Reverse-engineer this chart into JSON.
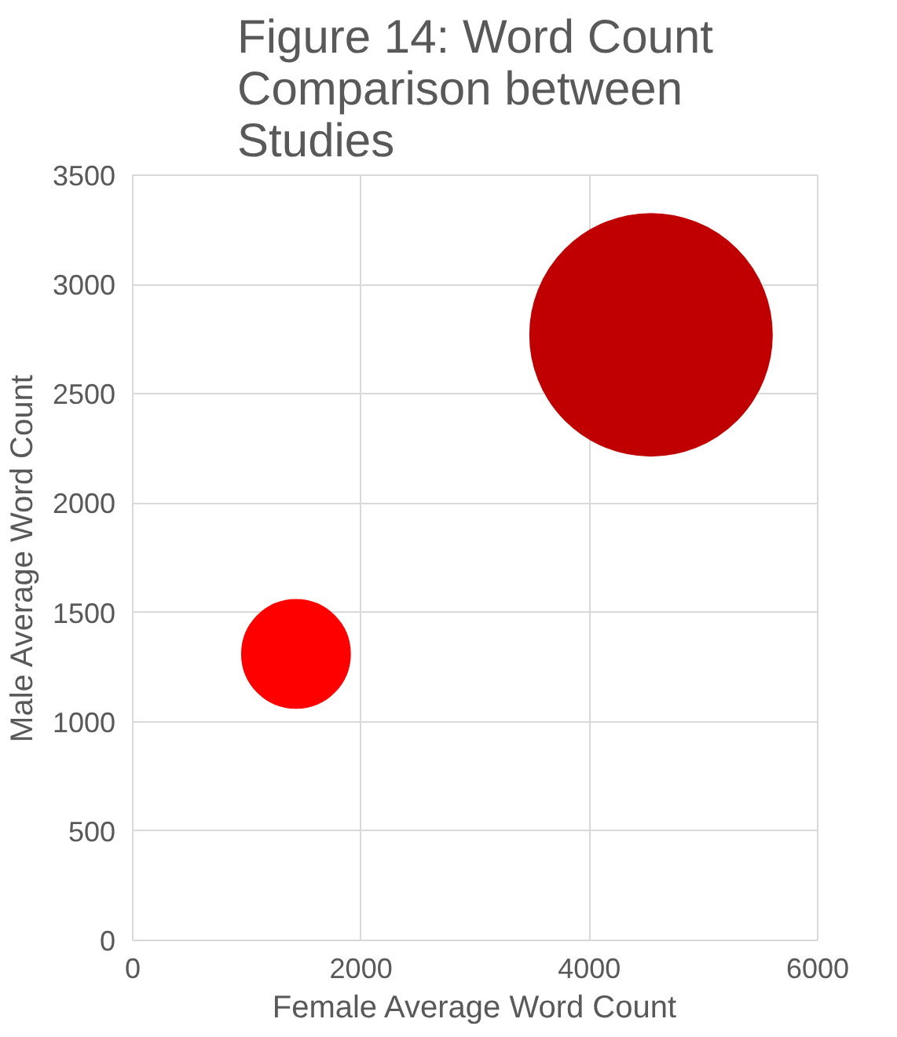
{
  "chart_data": {
    "type": "bubble",
    "title": "Figure 14: Word Count\nComparison between\nStudies",
    "xlabel": "Female Average Word Count",
    "ylabel": "Male Average Word Count",
    "x": [
      1430,
      4540
    ],
    "values": [
      1310,
      2770
    ],
    "sizes": [
      0.2,
      1
    ],
    "colors": [
      "#ff0000",
      "#c00000"
    ],
    "xlim": [
      0,
      6000
    ],
    "xticks": [
      0,
      2000,
      4000,
      6000
    ],
    "ylim": [
      0,
      3500
    ],
    "yticks": [
      0,
      500,
      1000,
      1500,
      2000,
      2500,
      3000,
      3500
    ],
    "grid": true
  }
}
